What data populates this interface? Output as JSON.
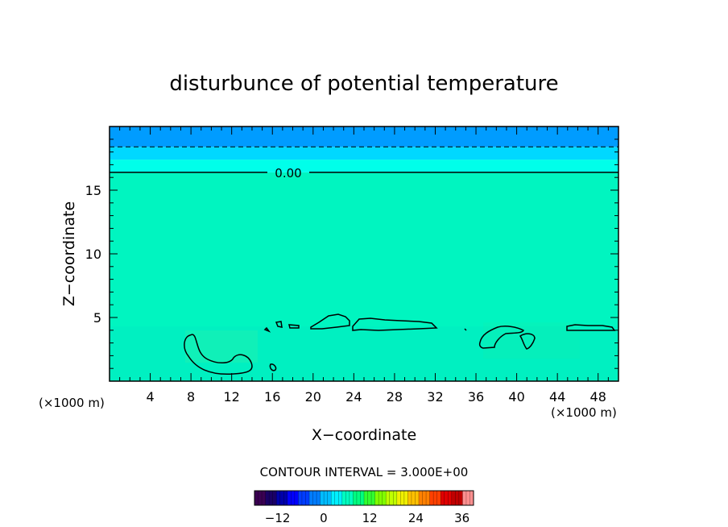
{
  "chart_data": {
    "type": "heatmap",
    "title": "disturbunce of potential temperature",
    "xlabel": "X−coordinate",
    "ylabel": "Z−coordinate",
    "x_unit_left": "(×1000 m)",
    "x_unit_right": "(×1000 m)",
    "xlim": [
      0,
      50
    ],
    "ylim": [
      0,
      20
    ],
    "x_ticks": [
      4,
      8,
      12,
      16,
      20,
      24,
      28,
      32,
      36,
      40,
      44,
      48
    ],
    "x_tick_labels": [
      "4",
      "8",
      "12",
      "16",
      "20",
      "24",
      "28",
      "32",
      "36",
      "40",
      "44",
      "48"
    ],
    "y_ticks": [
      5,
      10,
      15
    ],
    "y_tick_labels": [
      "5",
      "10",
      "15"
    ],
    "field_bands": [
      {
        "z_min": 0,
        "z_max": 16.4,
        "value": 0,
        "color": "#00f5c0"
      },
      {
        "z_min": 16.4,
        "z_max": 17.4,
        "value": -1.5,
        "color": "#00ffea"
      },
      {
        "z_min": 17.4,
        "z_max": 18.4,
        "value": -3,
        "color": "#00d8ff"
      },
      {
        "z_min": 18.4,
        "z_max": 20,
        "value": -4.5,
        "color": "#009cff"
      }
    ],
    "contours": [
      {
        "level": 0,
        "z": 16.4,
        "style": "solid",
        "label": "0.00"
      },
      {
        "level": -3,
        "z": 18.4,
        "style": "dashed"
      }
    ],
    "contour_interval_text": "CONTOUR INTERVAL = 3.000E+00",
    "colorbar": {
      "min": -18,
      "max": 39,
      "ticks": [
        -12,
        0,
        12,
        24,
        36
      ],
      "tick_labels": [
        "−12",
        "0",
        "12",
        "24",
        "36"
      ],
      "colors": [
        "#3a0052",
        "#1a0066",
        "#0000aa",
        "#0000ff",
        "#003cff",
        "#007cff",
        "#00bcff",
        "#00f0ff",
        "#00ffc0",
        "#00ff80",
        "#30ff30",
        "#80ff00",
        "#c0ff00",
        "#f0f000",
        "#ffc000",
        "#ff8000",
        "#ff4000",
        "#e00000",
        "#c00000",
        "#ff9090"
      ]
    }
  }
}
